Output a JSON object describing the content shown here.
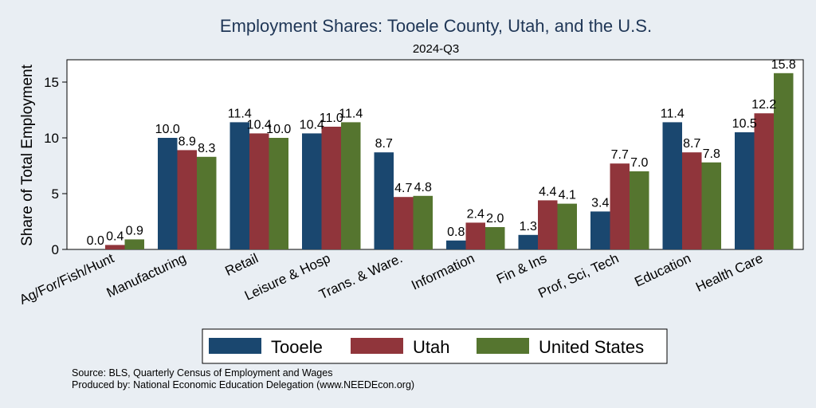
{
  "chart_data": {
    "type": "bar",
    "title": "Employment Shares: Tooele County, Utah, and the U.S.",
    "subtitle": "2024-Q3",
    "ylabel": "Share of Total Employment",
    "xlabel": "",
    "ylim": [
      0,
      17
    ],
    "yticks": [
      0,
      5,
      10,
      15
    ],
    "categories": [
      "Ag/For/Fish/Hunt",
      "Manufacturing",
      "Retail",
      "Leisure & Hosp",
      "Trans. & Ware.",
      "Information",
      "Fin & Ins",
      "Prof, Sci, Tech",
      "Education",
      "Health Care"
    ],
    "series": [
      {
        "name": "Tooele",
        "color": "#1a476f",
        "values": [
          0.0,
          10.0,
          11.4,
          10.4,
          8.7,
          0.8,
          1.3,
          3.4,
          11.4,
          10.5
        ]
      },
      {
        "name": "Utah",
        "color": "#90353b",
        "values": [
          0.4,
          8.9,
          10.4,
          11.0,
          4.7,
          2.4,
          4.4,
          7.7,
          8.7,
          12.2
        ]
      },
      {
        "name": "United States",
        "color": "#55752f",
        "values": [
          0.9,
          8.3,
          10.0,
          11.4,
          4.8,
          2.0,
          4.1,
          7.0,
          7.8,
          15.8
        ]
      }
    ],
    "grid": false,
    "legend_position": "bottom"
  },
  "source_lines": [
    "Source: BLS, Quarterly Census of Employment and Wages",
    "Produced by: National Economic Education Delegation (www.NEEDEcon.org)"
  ]
}
